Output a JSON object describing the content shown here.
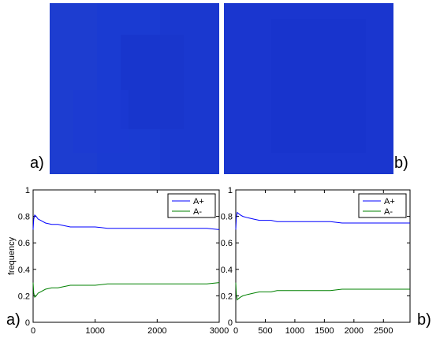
{
  "image_panels": {
    "color": "#1a38cf",
    "label_a": "a)",
    "label_b": "b)"
  },
  "chart_data": [
    {
      "type": "line",
      "panel_label": "a)",
      "ylabel": "frequency",
      "xlim": [
        0,
        3000
      ],
      "ylim": [
        0,
        1
      ],
      "xticks": [
        0,
        1000,
        2000,
        3000
      ],
      "yticks": [
        0,
        0.2,
        0.4,
        0.6,
        0.8,
        1
      ],
      "legend_position": "top-right",
      "series": [
        {
          "name": "A+",
          "color": "#0000ff",
          "x": [
            0,
            10,
            25,
            50,
            80,
            120,
            200,
            300,
            400,
            500,
            600,
            700,
            800,
            1000,
            1200,
            1400,
            1600,
            1800,
            2000,
            2200,
            2400,
            2600,
            2800,
            3000
          ],
          "y": [
            0.7,
            0.78,
            0.81,
            0.8,
            0.78,
            0.77,
            0.75,
            0.74,
            0.74,
            0.73,
            0.72,
            0.72,
            0.72,
            0.72,
            0.71,
            0.71,
            0.71,
            0.71,
            0.71,
            0.71,
            0.71,
            0.71,
            0.71,
            0.7
          ]
        },
        {
          "name": "A-",
          "color": "#008000",
          "x": [
            0,
            10,
            25,
            50,
            80,
            120,
            200,
            300,
            400,
            500,
            600,
            700,
            800,
            1000,
            1200,
            1400,
            1600,
            1800,
            2000,
            2200,
            2400,
            2600,
            2800,
            3000
          ],
          "y": [
            0.3,
            0.22,
            0.19,
            0.2,
            0.22,
            0.23,
            0.25,
            0.26,
            0.26,
            0.27,
            0.28,
            0.28,
            0.28,
            0.28,
            0.29,
            0.29,
            0.29,
            0.29,
            0.29,
            0.29,
            0.29,
            0.29,
            0.29,
            0.3
          ]
        }
      ]
    },
    {
      "type": "line",
      "panel_label": "b)",
      "ylabel": "",
      "xlim": [
        0,
        2950
      ],
      "ylim": [
        0,
        1
      ],
      "xticks": [
        0,
        500,
        1000,
        1500,
        2000,
        2500
      ],
      "yticks": [
        0,
        0.2,
        0.4,
        0.6,
        0.8,
        1
      ],
      "legend_position": "top-right",
      "series": [
        {
          "name": "A+",
          "color": "#0000ff",
          "x": [
            0,
            10,
            25,
            50,
            80,
            120,
            200,
            300,
            400,
            500,
            600,
            700,
            800,
            1000,
            1200,
            1400,
            1600,
            1800,
            2000,
            2200,
            2400,
            2600,
            2800,
            2950
          ],
          "y": [
            0.7,
            0.79,
            0.83,
            0.82,
            0.81,
            0.8,
            0.79,
            0.78,
            0.77,
            0.77,
            0.77,
            0.76,
            0.76,
            0.76,
            0.76,
            0.76,
            0.76,
            0.75,
            0.75,
            0.75,
            0.75,
            0.75,
            0.75,
            0.75
          ]
        },
        {
          "name": "A-",
          "color": "#008000",
          "x": [
            0,
            10,
            25,
            50,
            80,
            120,
            200,
            300,
            400,
            500,
            600,
            700,
            800,
            1000,
            1200,
            1400,
            1600,
            1800,
            2000,
            2200,
            2400,
            2600,
            2800,
            2950
          ],
          "y": [
            0.3,
            0.21,
            0.17,
            0.18,
            0.19,
            0.2,
            0.21,
            0.22,
            0.23,
            0.23,
            0.23,
            0.24,
            0.24,
            0.24,
            0.24,
            0.24,
            0.24,
            0.25,
            0.25,
            0.25,
            0.25,
            0.25,
            0.25,
            0.25
          ]
        }
      ]
    }
  ]
}
